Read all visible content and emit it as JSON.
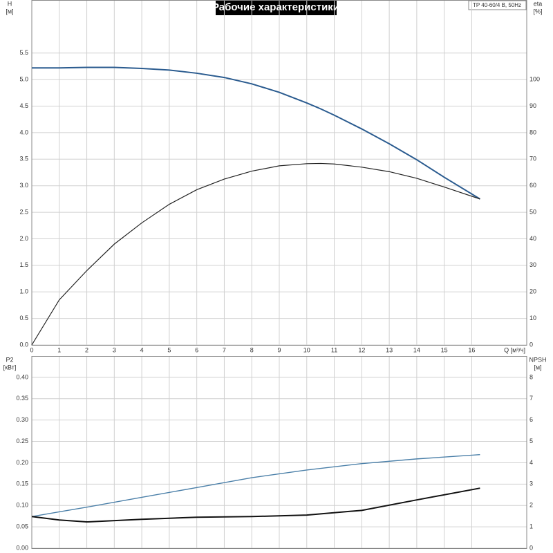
{
  "header": {
    "title": "Рабочие характеристики",
    "product": "TP 40-60/4 B, 50Hz"
  },
  "chart_data": [
    {
      "type": "line",
      "ylabel": "H",
      "ylabel_unit": "[м]",
      "y2label": "eta",
      "y2label_unit": "[%]",
      "xlabel": "Q [м³/ч]",
      "xlim": [
        0,
        18
      ],
      "xticks": [
        0,
        1,
        2,
        3,
        4,
        5,
        6,
        7,
        8,
        9,
        10,
        11,
        12,
        13,
        14,
        15,
        16
      ],
      "xtick_labels": true,
      "ylim": [
        0,
        6.5
      ],
      "yticks": [
        {
          "value": 0,
          "label": "0.0"
        },
        {
          "value": 0.5,
          "label": "0.5"
        },
        {
          "value": 1,
          "label": "1.0"
        },
        {
          "value": 1.5,
          "label": "1.5"
        },
        {
          "value": 2,
          "label": "2.0"
        },
        {
          "value": 2.5,
          "label": "2.5"
        },
        {
          "value": 3,
          "label": "3.0"
        },
        {
          "value": 3.5,
          "label": "3.5"
        },
        {
          "value": 4,
          "label": "4.0"
        },
        {
          "value": 4.5,
          "label": "4.5"
        },
        {
          "value": 5,
          "label": "5.0"
        },
        {
          "value": 5.5,
          "label": "5.5"
        }
      ],
      "y2lim": [
        0,
        130
      ],
      "y2ticks": [
        0,
        10,
        20,
        30,
        40,
        50,
        60,
        70,
        80,
        90,
        100
      ],
      "grid": true,
      "x": [
        0,
        1,
        2,
        3,
        4,
        5,
        6,
        7,
        8,
        9,
        10,
        10.5,
        11,
        12,
        13,
        14,
        15,
        16.3
      ],
      "series": [
        {
          "color": "#2a5b8f",
          "width": 2,
          "values": [
            5.22,
            5.22,
            5.23,
            5.23,
            5.21,
            5.18,
            5.12,
            5.04,
            4.92,
            4.76,
            4.56,
            4.45,
            4.33,
            4.07,
            3.79,
            3.49,
            3.16,
            2.75
          ]
        },
        {
          "color": "#222222",
          "width": 1.2,
          "axis": "y2",
          "values": [
            0,
            17,
            28,
            38,
            46,
            53,
            58.5,
            62.5,
            65.5,
            67.5,
            68.3,
            68.4,
            68.2,
            67,
            65.3,
            62.8,
            59.5,
            55
          ]
        }
      ]
    },
    {
      "type": "line",
      "ylabel": "P2",
      "ylabel_unit": "[кВт]",
      "y2label": "NPSH",
      "y2label_unit": "[м]",
      "xlim": [
        0,
        18
      ],
      "xticks": [
        0,
        1,
        2,
        3,
        4,
        5,
        6,
        7,
        8,
        9,
        10,
        11,
        12,
        13,
        14,
        15,
        16
      ],
      "xtick_labels": false,
      "ylim": [
        0,
        0.45
      ],
      "yticks": [
        {
          "value": 0,
          "label": "0.00"
        },
        {
          "value": 0.05,
          "label": "0.05"
        },
        {
          "value": 0.1,
          "label": "0.10"
        },
        {
          "value": 0.15,
          "label": "0.15"
        },
        {
          "value": 0.2,
          "label": "0.20"
        },
        {
          "value": 0.25,
          "label": "0.25"
        },
        {
          "value": 0.3,
          "label": "0.30"
        },
        {
          "value": 0.35,
          "label": "0.35"
        },
        {
          "value": 0.4,
          "label": "0.40"
        }
      ],
      "y2lim": [
        0,
        9
      ],
      "y2ticks": [
        0,
        1,
        2,
        3,
        4,
        5,
        6,
        7,
        8
      ],
      "grid": true,
      "x": [
        0,
        1,
        2,
        4,
        6,
        8,
        10,
        12,
        14,
        16.3
      ],
      "series": [
        {
          "color": "#4a7fa8",
          "width": 1.4,
          "values": [
            0.074,
            0.085,
            0.096,
            0.119,
            0.142,
            0.165,
            0.183,
            0.198,
            0.209,
            0.219
          ]
        },
        {
          "color": "#111111",
          "width": 2,
          "axis": "y2",
          "values": [
            1.48,
            1.32,
            1.23,
            1.35,
            1.45,
            1.48,
            1.55,
            1.77,
            2.26,
            2.81
          ]
        }
      ]
    }
  ]
}
